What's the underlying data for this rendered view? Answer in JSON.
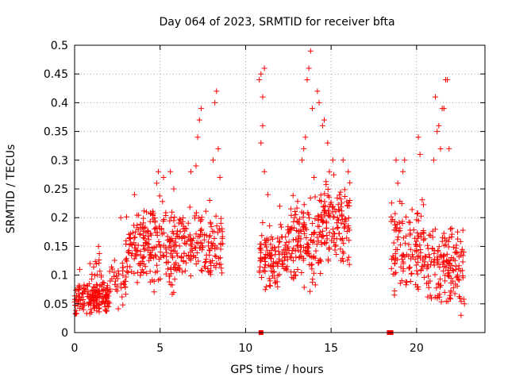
{
  "chart_data": {
    "type": "scatter",
    "title": "Day 064 of 2023, SRMTID for receiver bfta",
    "xlabel": "GPS time / hours",
    "ylabel": "SRMTID / TECUs",
    "xlim": [
      0,
      24
    ],
    "ylim": [
      0,
      0.5
    ],
    "grid": true,
    "x_ticks": [
      0,
      5,
      10,
      15,
      20
    ],
    "y_ticks": [
      0,
      0.05,
      0.1,
      0.15,
      0.2,
      0.25,
      0.3,
      0.35,
      0.4,
      0.45,
      0.5
    ],
    "x_tick_labels": [
      "0",
      "5",
      "10",
      "15",
      "20"
    ],
    "y_tick_labels": [
      "0",
      "0.05",
      "0.1",
      "0.15",
      "0.2",
      "0.25",
      "0.3",
      "0.35",
      "0.4",
      "0.45",
      "0.5"
    ],
    "marker_color": "#ff0000",
    "series": [
      {
        "name": "SRMTID",
        "marker": "plus",
        "segments": [
          {
            "t0": 0.0,
            "t1": 2.0,
            "lo": 0.03,
            "hi": 0.09,
            "count": 140
          },
          {
            "t0": 1.0,
            "t1": 3.0,
            "lo": 0.04,
            "hi": 0.14,
            "count": 70
          },
          {
            "t0": 3.0,
            "t1": 4.5,
            "lo": 0.08,
            "hi": 0.22,
            "count": 110
          },
          {
            "t0": 4.5,
            "t1": 6.0,
            "lo": 0.06,
            "hi": 0.25,
            "count": 110
          },
          {
            "t0": 6.0,
            "t1": 8.7,
            "lo": 0.09,
            "hi": 0.22,
            "count": 160
          },
          {
            "t0": 10.8,
            "t1": 12.5,
            "lo": 0.07,
            "hi": 0.2,
            "count": 120
          },
          {
            "t0": 12.5,
            "t1": 14.5,
            "lo": 0.07,
            "hi": 0.25,
            "count": 150
          },
          {
            "t0": 14.5,
            "t1": 16.1,
            "lo": 0.1,
            "hi": 0.28,
            "count": 120
          },
          {
            "t0": 18.5,
            "t1": 20.5,
            "lo": 0.05,
            "hi": 0.25,
            "count": 130
          },
          {
            "t0": 20.5,
            "t1": 22.8,
            "lo": 0.03,
            "hi": 0.2,
            "count": 150
          }
        ],
        "points": [
          [
            0.3,
            0.11
          ],
          [
            0.9,
            0.12
          ],
          [
            1.4,
            0.15
          ],
          [
            2.7,
            0.2
          ],
          [
            3.5,
            0.24
          ],
          [
            4.2,
            0.21
          ],
          [
            4.8,
            0.26
          ],
          [
            4.9,
            0.28
          ],
          [
            5.2,
            0.27
          ],
          [
            5.6,
            0.28
          ],
          [
            5.8,
            0.25
          ],
          [
            6.8,
            0.28
          ],
          [
            7.2,
            0.34
          ],
          [
            7.3,
            0.37
          ],
          [
            7.4,
            0.39
          ],
          [
            7.1,
            0.29
          ],
          [
            7.9,
            0.23
          ],
          [
            8.1,
            0.3
          ],
          [
            8.2,
            0.4
          ],
          [
            8.3,
            0.42
          ],
          [
            8.4,
            0.32
          ],
          [
            8.5,
            0.27
          ],
          [
            10.8,
            0.44
          ],
          [
            10.9,
            0.45
          ],
          [
            11.0,
            0.41
          ],
          [
            11.1,
            0.46
          ],
          [
            10.9,
            0.33
          ],
          [
            11.0,
            0.36
          ],
          [
            11.1,
            0.28
          ],
          [
            11.3,
            0.24
          ],
          [
            12.0,
            0.22
          ],
          [
            13.3,
            0.3
          ],
          [
            13.4,
            0.32
          ],
          [
            13.5,
            0.34
          ],
          [
            13.6,
            0.44
          ],
          [
            13.7,
            0.46
          ],
          [
            13.8,
            0.49
          ],
          [
            13.9,
            0.39
          ],
          [
            14.0,
            0.27
          ],
          [
            14.2,
            0.42
          ],
          [
            14.3,
            0.4
          ],
          [
            14.5,
            0.36
          ],
          [
            14.6,
            0.37
          ],
          [
            14.8,
            0.33
          ],
          [
            14.9,
            0.28
          ],
          [
            15.1,
            0.3
          ],
          [
            15.7,
            0.3
          ],
          [
            16.0,
            0.28
          ],
          [
            16.1,
            0.23
          ],
          [
            18.8,
            0.3
          ],
          [
            18.9,
            0.26
          ],
          [
            19.2,
            0.28
          ],
          [
            19.3,
            0.3
          ],
          [
            20.1,
            0.34
          ],
          [
            20.2,
            0.31
          ],
          [
            21.0,
            0.3
          ],
          [
            21.2,
            0.35
          ],
          [
            21.3,
            0.36
          ],
          [
            21.4,
            0.32
          ],
          [
            21.5,
            0.39
          ],
          [
            21.6,
            0.39
          ],
          [
            21.7,
            0.44
          ],
          [
            21.8,
            0.44
          ],
          [
            21.1,
            0.41
          ],
          [
            21.9,
            0.32
          ],
          [
            22.3,
            0.14
          ],
          [
            22.6,
            0.03
          ],
          [
            22.8,
            0.05
          ]
        ]
      },
      {
        "name": "zero markers",
        "marker": "square",
        "points": [
          [
            10.9,
            0.0
          ],
          [
            18.4,
            0.0
          ],
          [
            18.5,
            0.0
          ]
        ]
      }
    ]
  }
}
